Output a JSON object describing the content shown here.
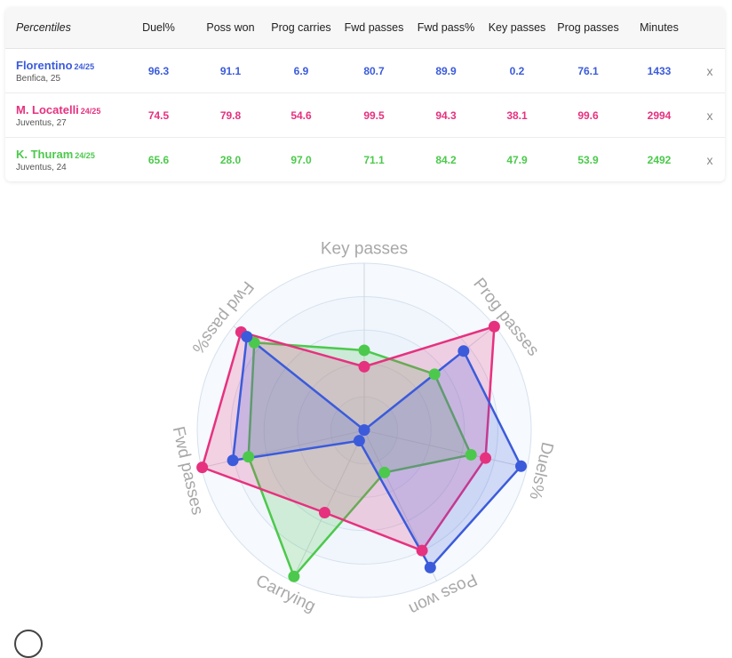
{
  "table": {
    "header_label": "Percentiles",
    "columns": [
      "Duel%",
      "Poss won",
      "Prog carries",
      "Fwd passes",
      "Fwd pass%",
      "Key passes",
      "Prog passes",
      "Minutes"
    ],
    "remove_label": "x",
    "rows": [
      {
        "name": "Florentino",
        "season": "24/25",
        "info": "Benfica, 25",
        "color": "#3b5bdb",
        "values": [
          "96.3",
          "91.1",
          "6.9",
          "80.7",
          "89.9",
          "0.2",
          "76.1",
          "1433"
        ]
      },
      {
        "name": "M. Locatelli",
        "season": "24/25",
        "info": "Juventus, 27",
        "color": "#e6317f",
        "values": [
          "74.5",
          "79.8",
          "54.6",
          "99.5",
          "94.3",
          "38.1",
          "99.6",
          "2994"
        ]
      },
      {
        "name": "K. Thuram",
        "season": "24/25",
        "info": "Juventus, 24",
        "color": "#4cc94c",
        "values": [
          "65.6",
          "28.0",
          "97.0",
          "71.1",
          "84.2",
          "47.9",
          "53.9",
          "2492"
        ]
      }
    ]
  },
  "chart_data": {
    "type": "radar",
    "axes": [
      "Key passes",
      "Prog passes",
      "Duels%",
      "Poss won",
      "Carrying",
      "Fwd passes",
      "Fwd pass%"
    ],
    "range": [
      0,
      100
    ],
    "series": [
      {
        "name": "Florentino",
        "color": "#3b5bdb",
        "values": [
          0.2,
          76.1,
          96.3,
          91.1,
          6.9,
          80.7,
          89.9
        ]
      },
      {
        "name": "M. Locatelli",
        "color": "#e6317f",
        "values": [
          38.1,
          99.6,
          74.5,
          79.8,
          54.6,
          99.5,
          94.3
        ]
      },
      {
        "name": "K. Thuram",
        "color": "#4cc94c",
        "values": [
          47.9,
          53.9,
          65.6,
          28.0,
          97.0,
          71.1,
          84.2
        ]
      }
    ]
  }
}
